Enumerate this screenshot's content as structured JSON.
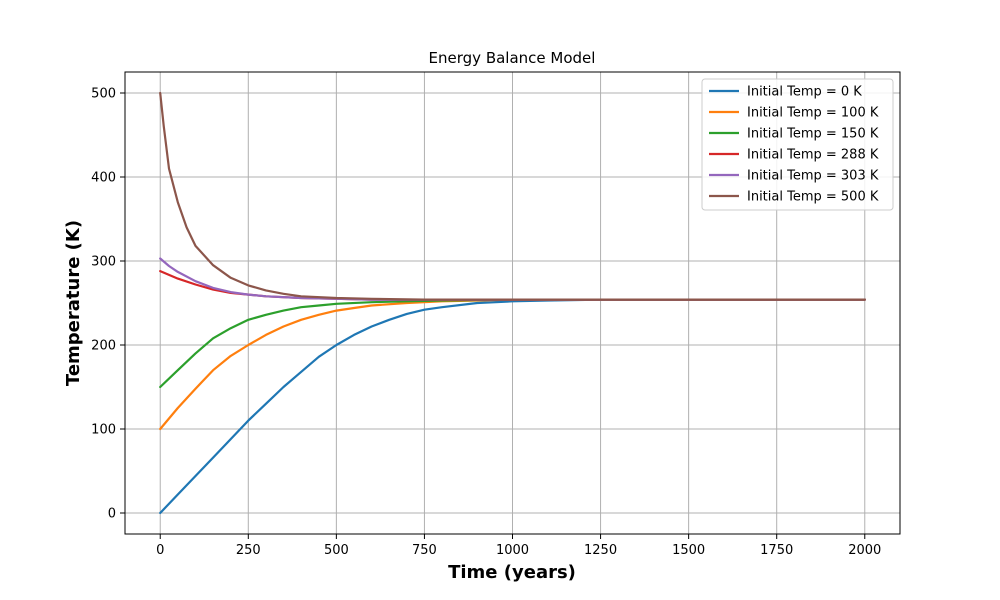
{
  "chart_data": {
    "type": "line",
    "title": "Energy Balance Model",
    "xlabel": "Time (years)",
    "ylabel": "Temperature (K)",
    "xlim": [
      -100,
      2100
    ],
    "ylim": [
      -25,
      525
    ],
    "xticks": [
      0,
      250,
      500,
      750,
      1000,
      1250,
      1500,
      1750,
      2000
    ],
    "yticks": [
      0,
      100,
      200,
      300,
      400,
      500
    ],
    "grid": true,
    "legend_position": "top-right",
    "series": [
      {
        "name": "Initial Temp = 0 K",
        "color": "#1f77b4",
        "x": [
          0,
          50,
          100,
          150,
          200,
          250,
          300,
          350,
          400,
          450,
          500,
          550,
          600,
          650,
          700,
          750,
          800,
          900,
          1000,
          1100,
          1250,
          1500,
          1750,
          2000
        ],
        "y": [
          0,
          22,
          44,
          66,
          88,
          110,
          130,
          150,
          168,
          186,
          200,
          212,
          222,
          230,
          237,
          242,
          245,
          250,
          252,
          253,
          254,
          254,
          254,
          254
        ]
      },
      {
        "name": "Initial Temp = 100 K",
        "color": "#ff7f0e",
        "x": [
          0,
          50,
          100,
          150,
          200,
          250,
          300,
          350,
          400,
          450,
          500,
          550,
          600,
          700,
          800,
          900,
          1000,
          1250,
          1500,
          1750,
          2000
        ],
        "y": [
          100,
          125,
          148,
          170,
          187,
          200,
          212,
          222,
          230,
          236,
          241,
          244,
          247,
          250,
          252,
          253,
          254,
          254,
          254,
          254,
          254
        ]
      },
      {
        "name": "Initial Temp = 150 K",
        "color": "#2ca02c",
        "x": [
          0,
          50,
          100,
          150,
          200,
          250,
          300,
          350,
          400,
          450,
          500,
          600,
          700,
          800,
          1000,
          1250,
          1500,
          1750,
          2000
        ],
        "y": [
          150,
          170,
          190,
          208,
          220,
          230,
          236,
          241,
          245,
          247,
          249,
          251,
          252,
          253,
          254,
          254,
          254,
          254,
          254
        ]
      },
      {
        "name": "Initial Temp = 288 K",
        "color": "#d62728",
        "x": [
          0,
          50,
          100,
          150,
          200,
          250,
          300,
          400,
          500,
          600,
          750,
          1000,
          1250,
          1500,
          1750,
          2000
        ],
        "y": [
          288,
          279,
          272,
          266,
          262,
          260,
          258,
          256,
          255,
          254,
          254,
          254,
          254,
          254,
          254,
          254
        ]
      },
      {
        "name": "Initial Temp = 303 K",
        "color": "#9467bd",
        "x": [
          0,
          25,
          50,
          100,
          150,
          200,
          250,
          300,
          400,
          500,
          600,
          750,
          1000,
          1250,
          1500,
          1750,
          2000
        ],
        "y": [
          303,
          294,
          287,
          276,
          268,
          263,
          260,
          258,
          256,
          255,
          254,
          254,
          254,
          254,
          254,
          254,
          254
        ]
      },
      {
        "name": "Initial Temp = 500 K",
        "color": "#8c564b",
        "x": [
          0,
          10,
          25,
          50,
          75,
          100,
          150,
          200,
          250,
          300,
          350,
          400,
          500,
          600,
          750,
          1000,
          1250,
          1500,
          1750,
          2000
        ],
        "y": [
          500,
          460,
          410,
          370,
          340,
          318,
          295,
          280,
          271,
          265,
          261,
          258,
          256,
          255,
          254,
          254,
          254,
          254,
          254,
          254
        ]
      }
    ]
  }
}
